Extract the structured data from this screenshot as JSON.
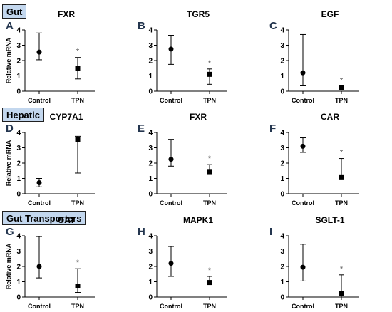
{
  "sections": [
    {
      "label": "Gut"
    },
    {
      "label": "Hepatic"
    },
    {
      "label": "Gut Transporters"
    }
  ],
  "chart_data": [
    {
      "type": "scatter",
      "letter": "A",
      "title": "FXR",
      "ylabel": "Relative mRNA",
      "ylim": [
        0,
        4
      ],
      "categories": [
        "Control",
        "TPN"
      ],
      "yticks": [
        "0",
        "1",
        "2",
        "3",
        "4"
      ],
      "points": [
        {
          "x": "Control",
          "y": 2.55,
          "low": 2.05,
          "high": 3.8,
          "marker": "circle"
        },
        {
          "x": "TPN",
          "y": 1.5,
          "low": 0.8,
          "high": 2.2,
          "marker": "square",
          "annotation": "*"
        }
      ]
    },
    {
      "type": "scatter",
      "letter": "B",
      "title": "TGR5",
      "ylabel": "",
      "ylim": [
        0,
        4
      ],
      "categories": [
        "Control",
        "TPN"
      ],
      "yticks": [
        "0",
        "1",
        "2",
        "3",
        "4"
      ],
      "points": [
        {
          "x": "Control",
          "y": 2.75,
          "low": 1.75,
          "high": 3.65,
          "marker": "circle"
        },
        {
          "x": "TPN",
          "y": 1.1,
          "low": 0.45,
          "high": 1.45,
          "marker": "square",
          "annotation": "*"
        }
      ]
    },
    {
      "type": "scatter",
      "letter": "C",
      "title": "EGF",
      "ylabel": "",
      "ylim": [
        0,
        4
      ],
      "categories": [
        "Control",
        "TPN"
      ],
      "yticks": [
        "0",
        "1",
        "2",
        "3",
        "4"
      ],
      "points": [
        {
          "x": "Control",
          "y": 1.2,
          "low": 0.35,
          "high": 3.7,
          "marker": "circle"
        },
        {
          "x": "TPN",
          "y": 0.25,
          "low": 0.2,
          "high": 0.3,
          "marker": "square",
          "annotation": "*"
        }
      ]
    },
    {
      "type": "scatter",
      "letter": "D",
      "title": "CYP7A1",
      "ylabel": "Relative mRNA",
      "ylim": [
        0,
        4
      ],
      "categories": [
        "Control",
        "TPN"
      ],
      "yticks": [
        "0",
        "1",
        "2",
        "3",
        "4"
      ],
      "points": [
        {
          "x": "Control",
          "y": 0.72,
          "low": 0.45,
          "high": 1.0,
          "marker": "circle"
        },
        {
          "x": "TPN",
          "y": 3.55,
          "low": 1.35,
          "high": 3.75,
          "marker": "square"
        }
      ]
    },
    {
      "type": "scatter",
      "letter": "E",
      "title": "FXR",
      "ylabel": "",
      "ylim": [
        0,
        4
      ],
      "categories": [
        "Control",
        "TPN"
      ],
      "yticks": [
        "0",
        "1",
        "2",
        "3",
        "4"
      ],
      "points": [
        {
          "x": "Control",
          "y": 2.25,
          "low": 1.8,
          "high": 3.55,
          "marker": "circle"
        },
        {
          "x": "TPN",
          "y": 1.45,
          "low": 1.3,
          "high": 1.9,
          "marker": "square",
          "annotation": "*"
        }
      ]
    },
    {
      "type": "scatter",
      "letter": "F",
      "title": "CAR",
      "ylabel": "",
      "ylim": [
        0,
        4
      ],
      "categories": [
        "Control",
        "TPN"
      ],
      "yticks": [
        "0",
        "1",
        "2",
        "3",
        "4"
      ],
      "points": [
        {
          "x": "Control",
          "y": 3.1,
          "low": 2.7,
          "high": 3.65,
          "marker": "circle"
        },
        {
          "x": "TPN",
          "y": 1.1,
          "low": 1.0,
          "high": 2.3,
          "marker": "square",
          "annotation": "*"
        }
      ]
    },
    {
      "type": "scatter",
      "letter": "G",
      "title": "OAT",
      "ylabel": "Relative mRNA",
      "ylim": [
        0,
        4
      ],
      "categories": [
        "Control",
        "TPN"
      ],
      "yticks": [
        "0",
        "1",
        "2",
        "3",
        "4"
      ],
      "points": [
        {
          "x": "Control",
          "y": 2.0,
          "low": 1.25,
          "high": 3.95,
          "marker": "circle"
        },
        {
          "x": "TPN",
          "y": 0.72,
          "low": 0.3,
          "high": 1.85,
          "marker": "square",
          "annotation": "*"
        }
      ]
    },
    {
      "type": "scatter",
      "letter": "H",
      "title": "MAPK1",
      "ylabel": "",
      "ylim": [
        0,
        4
      ],
      "categories": [
        "Control",
        "TPN"
      ],
      "yticks": [
        "0",
        "1",
        "2",
        "3",
        "4"
      ],
      "points": [
        {
          "x": "Control",
          "y": 2.2,
          "low": 1.35,
          "high": 3.3,
          "marker": "circle"
        },
        {
          "x": "TPN",
          "y": 0.95,
          "low": 0.85,
          "high": 1.35,
          "marker": "square",
          "annotation": "*"
        }
      ]
    },
    {
      "type": "scatter",
      "letter": "I",
      "title": "SGLT-1",
      "ylabel": "",
      "ylim": [
        0,
        4
      ],
      "categories": [
        "Control",
        "TPN"
      ],
      "yticks": [
        "0",
        "1",
        "2",
        "3",
        "4"
      ],
      "points": [
        {
          "x": "Control",
          "y": 1.95,
          "low": 1.05,
          "high": 3.45,
          "marker": "circle"
        },
        {
          "x": "TPN",
          "y": 0.25,
          "low": 0.0,
          "high": 1.45,
          "marker": "square",
          "annotation": "*"
        }
      ]
    }
  ]
}
